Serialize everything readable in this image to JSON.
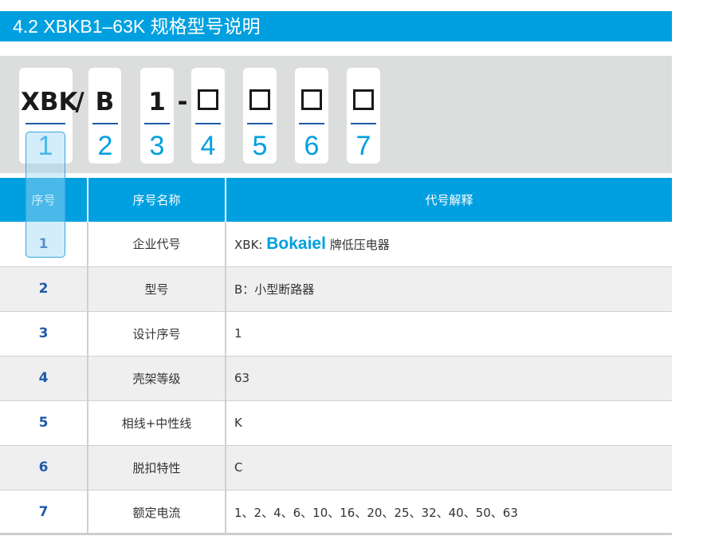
{
  "title": "4.2  XBKB1–63K 规格型号说明",
  "model_code": {
    "parts": [
      "XBK",
      "/",
      "B",
      "1",
      "-"
    ],
    "slots": [
      "1",
      "2",
      "3",
      "4",
      "5",
      "6",
      "7"
    ]
  },
  "table": {
    "headers": [
      "序号",
      "序号名称",
      "代号解释"
    ],
    "rows": [
      {
        "no": "1",
        "name": "企业代号",
        "desc_prefix": "XBK:",
        "brand": "Bokaiel",
        "desc_suffix": "牌低压电器"
      },
      {
        "no": "2",
        "name": "型号",
        "desc": "B：小型断路器"
      },
      {
        "no": "3",
        "name": "设计序号",
        "desc": "1"
      },
      {
        "no": "4",
        "name": "壳架等级",
        "desc": "63"
      },
      {
        "no": "5",
        "name": "相线+中性线",
        "desc": "K"
      },
      {
        "no": "6",
        "name": "脱扣特性",
        "desc": "C"
      },
      {
        "no": "7",
        "name": "额定电流",
        "desc": "1、2、4、6、10、16、20、25、32、40、50、63"
      }
    ]
  },
  "colors": {
    "accent": "#00a0e0",
    "number": "#1e5aa8"
  }
}
